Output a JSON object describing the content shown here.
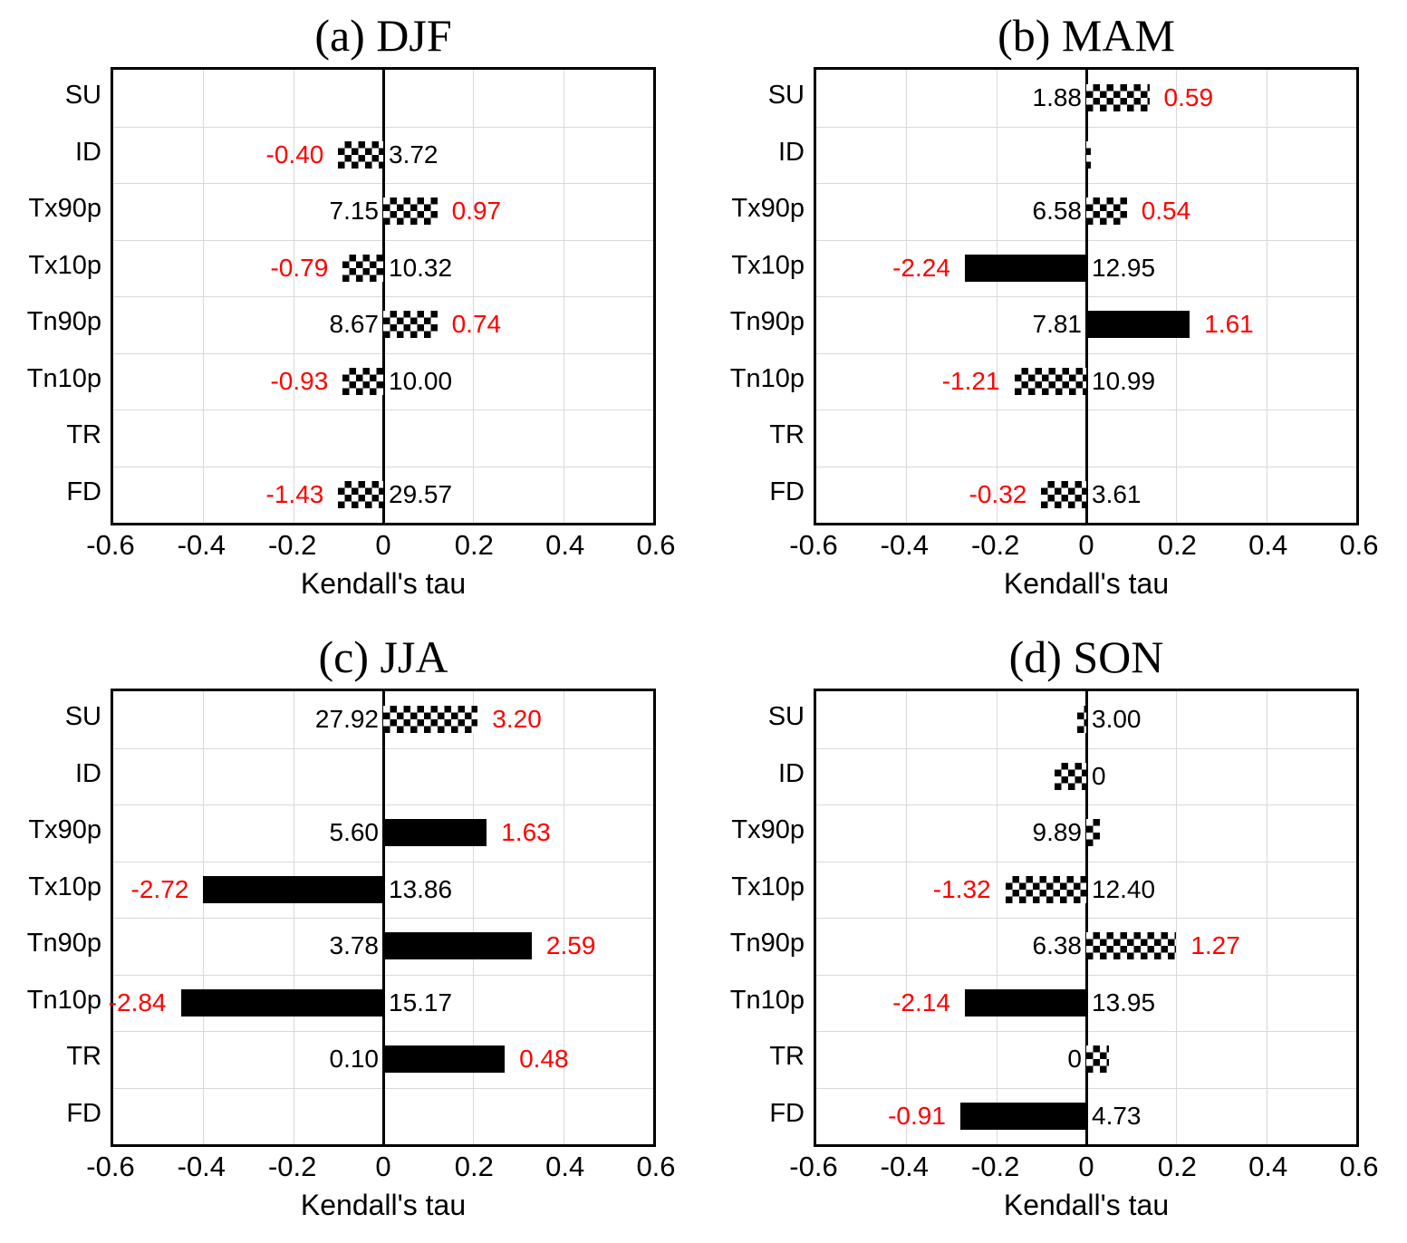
{
  "figure": {
    "background": "#ffffff",
    "accent_colors": {
      "trend_label": "#ff0000",
      "mean_label": "#000000",
      "solid_bar": "#000000",
      "gridline": "#d9d9d9",
      "axis_and_border": "#000000"
    },
    "pattern_legend": {
      "checker": "checkerboard-filled bar",
      "solid": "solid black bar"
    }
  },
  "chart_data": [
    {
      "type": "bar",
      "orientation": "horizontal",
      "panel_id": "a-djf",
      "title": "(a) DJF",
      "xlabel": "Kendall's tau",
      "xlim": [
        -0.6,
        0.6
      ],
      "xticks": [
        "-0.6",
        "-0.4",
        "-0.2",
        "0",
        "0.2",
        "0.4",
        "0.6"
      ],
      "grid": true,
      "categories": [
        "SU",
        "ID",
        "Tx90p",
        "Tx10p",
        "Tn90p",
        "Tn10p",
        "TR",
        "FD"
      ],
      "bars": [
        {
          "category": "SU",
          "tau": null,
          "pattern": null,
          "trend_label": null,
          "mean_label": null
        },
        {
          "category": "ID",
          "tau": -0.1,
          "pattern": "checker",
          "trend_label": "-0.40",
          "mean_label": "3.72"
        },
        {
          "category": "Tx90p",
          "tau": 0.12,
          "pattern": "checker",
          "trend_label": "0.97",
          "mean_label": "7.15"
        },
        {
          "category": "Tx10p",
          "tau": -0.09,
          "pattern": "checker",
          "trend_label": "-0.79",
          "mean_label": "10.32"
        },
        {
          "category": "Tn90p",
          "tau": 0.12,
          "pattern": "checker",
          "trend_label": "0.74",
          "mean_label": "8.67"
        },
        {
          "category": "Tn10p",
          "tau": -0.09,
          "pattern": "checker",
          "trend_label": "-0.93",
          "mean_label": "10.00"
        },
        {
          "category": "TR",
          "tau": null,
          "pattern": null,
          "trend_label": null,
          "mean_label": null
        },
        {
          "category": "FD",
          "tau": -0.1,
          "pattern": "checker",
          "trend_label": "-1.43",
          "mean_label": "29.57"
        }
      ]
    },
    {
      "type": "bar",
      "orientation": "horizontal",
      "panel_id": "b-mam",
      "title": "(b) MAM",
      "xlabel": "Kendall's tau",
      "xlim": [
        -0.6,
        0.6
      ],
      "xticks": [
        "-0.6",
        "-0.4",
        "-0.2",
        "0",
        "0.2",
        "0.4",
        "0.6"
      ],
      "grid": true,
      "categories": [
        "SU",
        "ID",
        "Tx90p",
        "Tx10p",
        "Tn90p",
        "Tn10p",
        "TR",
        "FD"
      ],
      "bars": [
        {
          "category": "SU",
          "tau": 0.14,
          "pattern": "checker",
          "trend_label": "0.59",
          "mean_label": "1.88"
        },
        {
          "category": "ID",
          "tau": 0.01,
          "pattern": "checker",
          "trend_label": null,
          "mean_label": null
        },
        {
          "category": "Tx90p",
          "tau": 0.09,
          "pattern": "checker",
          "trend_label": "0.54",
          "mean_label": "6.58"
        },
        {
          "category": "Tx10p",
          "tau": -0.27,
          "pattern": "solid",
          "trend_label": "-2.24",
          "mean_label": "12.95"
        },
        {
          "category": "Tn90p",
          "tau": 0.23,
          "pattern": "solid",
          "trend_label": "1.61",
          "mean_label": "7.81"
        },
        {
          "category": "Tn10p",
          "tau": -0.16,
          "pattern": "checker",
          "trend_label": "-1.21",
          "mean_label": "10.99"
        },
        {
          "category": "TR",
          "tau": null,
          "pattern": null,
          "trend_label": null,
          "mean_label": null
        },
        {
          "category": "FD",
          "tau": -0.1,
          "pattern": "checker",
          "trend_label": "-0.32",
          "mean_label": "3.61"
        }
      ]
    },
    {
      "type": "bar",
      "orientation": "horizontal",
      "panel_id": "c-jja",
      "title": "(c) JJA",
      "xlabel": "Kendall's tau",
      "xlim": [
        -0.6,
        0.6
      ],
      "xticks": [
        "-0.6",
        "-0.4",
        "-0.2",
        "0",
        "0.2",
        "0.4",
        "0.6"
      ],
      "grid": true,
      "categories": [
        "SU",
        "ID",
        "Tx90p",
        "Tx10p",
        "Tn90p",
        "Tn10p",
        "TR",
        "FD"
      ],
      "bars": [
        {
          "category": "SU",
          "tau": 0.21,
          "pattern": "checker",
          "trend_label": "3.20",
          "mean_label": "27.92"
        },
        {
          "category": "ID",
          "tau": null,
          "pattern": null,
          "trend_label": null,
          "mean_label": null
        },
        {
          "category": "Tx90p",
          "tau": 0.23,
          "pattern": "solid",
          "trend_label": "1.63",
          "mean_label": "5.60"
        },
        {
          "category": "Tx10p",
          "tau": -0.4,
          "pattern": "solid",
          "trend_label": "-2.72",
          "mean_label": "13.86"
        },
        {
          "category": "Tn90p",
          "tau": 0.33,
          "pattern": "solid",
          "trend_label": "2.59",
          "mean_label": "3.78"
        },
        {
          "category": "Tn10p",
          "tau": -0.45,
          "pattern": "solid",
          "trend_label": "-2.84",
          "mean_label": "15.17"
        },
        {
          "category": "TR",
          "tau": 0.27,
          "pattern": "solid",
          "trend_label": "0.48",
          "mean_label": "0.10"
        },
        {
          "category": "FD",
          "tau": null,
          "pattern": null,
          "trend_label": null,
          "mean_label": null
        }
      ]
    },
    {
      "type": "bar",
      "orientation": "horizontal",
      "panel_id": "d-son",
      "title": "(d) SON",
      "xlabel": "Kendall's tau",
      "xlim": [
        -0.6,
        0.6
      ],
      "xticks": [
        "-0.6",
        "-0.4",
        "-0.2",
        "0",
        "0.2",
        "0.4",
        "0.6"
      ],
      "grid": true,
      "categories": [
        "SU",
        "ID",
        "Tx90p",
        "Tx10p",
        "Tn90p",
        "Tn10p",
        "TR",
        "FD"
      ],
      "bars": [
        {
          "category": "SU",
          "tau": -0.02,
          "pattern": "checker",
          "trend_label": null,
          "mean_label": "3.00"
        },
        {
          "category": "ID",
          "tau": -0.07,
          "pattern": "checker",
          "trend_label": null,
          "mean_label": "0"
        },
        {
          "category": "Tx90p",
          "tau": 0.03,
          "pattern": "checker",
          "trend_label": null,
          "mean_label": "9.89"
        },
        {
          "category": "Tx10p",
          "tau": -0.18,
          "pattern": "checker",
          "trend_label": "-1.32",
          "mean_label": "12.40"
        },
        {
          "category": "Tn90p",
          "tau": 0.2,
          "pattern": "checker",
          "trend_label": "1.27",
          "mean_label": "6.38"
        },
        {
          "category": "Tn10p",
          "tau": -0.27,
          "pattern": "solid",
          "trend_label": "-2.14",
          "mean_label": "13.95"
        },
        {
          "category": "TR",
          "tau": 0.05,
          "pattern": "checker",
          "trend_label": null,
          "mean_label": "0"
        },
        {
          "category": "FD",
          "tau": -0.28,
          "pattern": "solid",
          "trend_label": "-0.91",
          "mean_label": "4.73"
        }
      ]
    }
  ]
}
